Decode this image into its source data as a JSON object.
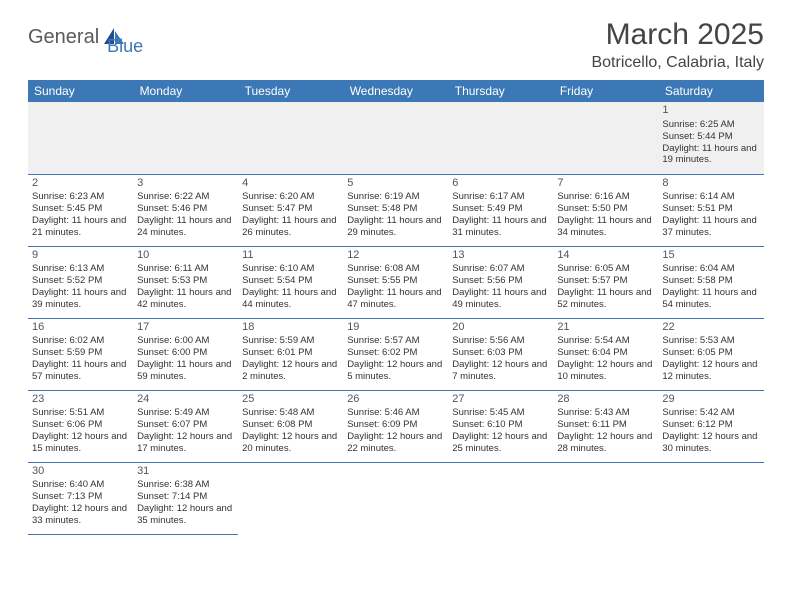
{
  "logo": {
    "text1": "General",
    "text2": "Blue"
  },
  "title": "March 2025",
  "location": "Botricello, Calabria, Italy",
  "colors": {
    "header_bg": "#3b78b5",
    "header_text": "#ffffff",
    "border": "#3b78b5",
    "empty_bg": "#f0f0f0",
    "logo_gray": "#5a5a5a",
    "logo_blue": "#3b78b5"
  },
  "day_headers": [
    "Sunday",
    "Monday",
    "Tuesday",
    "Wednesday",
    "Thursday",
    "Friday",
    "Saturday"
  ],
  "weeks": [
    [
      null,
      null,
      null,
      null,
      null,
      null,
      {
        "d": "1",
        "sr": "Sunrise: 6:25 AM",
        "ss": "Sunset: 5:44 PM",
        "dl": "Daylight: 11 hours and 19 minutes."
      }
    ],
    [
      {
        "d": "2",
        "sr": "Sunrise: 6:23 AM",
        "ss": "Sunset: 5:45 PM",
        "dl": "Daylight: 11 hours and 21 minutes."
      },
      {
        "d": "3",
        "sr": "Sunrise: 6:22 AM",
        "ss": "Sunset: 5:46 PM",
        "dl": "Daylight: 11 hours and 24 minutes."
      },
      {
        "d": "4",
        "sr": "Sunrise: 6:20 AM",
        "ss": "Sunset: 5:47 PM",
        "dl": "Daylight: 11 hours and 26 minutes."
      },
      {
        "d": "5",
        "sr": "Sunrise: 6:19 AM",
        "ss": "Sunset: 5:48 PM",
        "dl": "Daylight: 11 hours and 29 minutes."
      },
      {
        "d": "6",
        "sr": "Sunrise: 6:17 AM",
        "ss": "Sunset: 5:49 PM",
        "dl": "Daylight: 11 hours and 31 minutes."
      },
      {
        "d": "7",
        "sr": "Sunrise: 6:16 AM",
        "ss": "Sunset: 5:50 PM",
        "dl": "Daylight: 11 hours and 34 minutes."
      },
      {
        "d": "8",
        "sr": "Sunrise: 6:14 AM",
        "ss": "Sunset: 5:51 PM",
        "dl": "Daylight: 11 hours and 37 minutes."
      }
    ],
    [
      {
        "d": "9",
        "sr": "Sunrise: 6:13 AM",
        "ss": "Sunset: 5:52 PM",
        "dl": "Daylight: 11 hours and 39 minutes."
      },
      {
        "d": "10",
        "sr": "Sunrise: 6:11 AM",
        "ss": "Sunset: 5:53 PM",
        "dl": "Daylight: 11 hours and 42 minutes."
      },
      {
        "d": "11",
        "sr": "Sunrise: 6:10 AM",
        "ss": "Sunset: 5:54 PM",
        "dl": "Daylight: 11 hours and 44 minutes."
      },
      {
        "d": "12",
        "sr": "Sunrise: 6:08 AM",
        "ss": "Sunset: 5:55 PM",
        "dl": "Daylight: 11 hours and 47 minutes."
      },
      {
        "d": "13",
        "sr": "Sunrise: 6:07 AM",
        "ss": "Sunset: 5:56 PM",
        "dl": "Daylight: 11 hours and 49 minutes."
      },
      {
        "d": "14",
        "sr": "Sunrise: 6:05 AM",
        "ss": "Sunset: 5:57 PM",
        "dl": "Daylight: 11 hours and 52 minutes."
      },
      {
        "d": "15",
        "sr": "Sunrise: 6:04 AM",
        "ss": "Sunset: 5:58 PM",
        "dl": "Daylight: 11 hours and 54 minutes."
      }
    ],
    [
      {
        "d": "16",
        "sr": "Sunrise: 6:02 AM",
        "ss": "Sunset: 5:59 PM",
        "dl": "Daylight: 11 hours and 57 minutes."
      },
      {
        "d": "17",
        "sr": "Sunrise: 6:00 AM",
        "ss": "Sunset: 6:00 PM",
        "dl": "Daylight: 11 hours and 59 minutes."
      },
      {
        "d": "18",
        "sr": "Sunrise: 5:59 AM",
        "ss": "Sunset: 6:01 PM",
        "dl": "Daylight: 12 hours and 2 minutes."
      },
      {
        "d": "19",
        "sr": "Sunrise: 5:57 AM",
        "ss": "Sunset: 6:02 PM",
        "dl": "Daylight: 12 hours and 5 minutes."
      },
      {
        "d": "20",
        "sr": "Sunrise: 5:56 AM",
        "ss": "Sunset: 6:03 PM",
        "dl": "Daylight: 12 hours and 7 minutes."
      },
      {
        "d": "21",
        "sr": "Sunrise: 5:54 AM",
        "ss": "Sunset: 6:04 PM",
        "dl": "Daylight: 12 hours and 10 minutes."
      },
      {
        "d": "22",
        "sr": "Sunrise: 5:53 AM",
        "ss": "Sunset: 6:05 PM",
        "dl": "Daylight: 12 hours and 12 minutes."
      }
    ],
    [
      {
        "d": "23",
        "sr": "Sunrise: 5:51 AM",
        "ss": "Sunset: 6:06 PM",
        "dl": "Daylight: 12 hours and 15 minutes."
      },
      {
        "d": "24",
        "sr": "Sunrise: 5:49 AM",
        "ss": "Sunset: 6:07 PM",
        "dl": "Daylight: 12 hours and 17 minutes."
      },
      {
        "d": "25",
        "sr": "Sunrise: 5:48 AM",
        "ss": "Sunset: 6:08 PM",
        "dl": "Daylight: 12 hours and 20 minutes."
      },
      {
        "d": "26",
        "sr": "Sunrise: 5:46 AM",
        "ss": "Sunset: 6:09 PM",
        "dl": "Daylight: 12 hours and 22 minutes."
      },
      {
        "d": "27",
        "sr": "Sunrise: 5:45 AM",
        "ss": "Sunset: 6:10 PM",
        "dl": "Daylight: 12 hours and 25 minutes."
      },
      {
        "d": "28",
        "sr": "Sunrise: 5:43 AM",
        "ss": "Sunset: 6:11 PM",
        "dl": "Daylight: 12 hours and 28 minutes."
      },
      {
        "d": "29",
        "sr": "Sunrise: 5:42 AM",
        "ss": "Sunset: 6:12 PM",
        "dl": "Daylight: 12 hours and 30 minutes."
      }
    ],
    [
      {
        "d": "30",
        "sr": "Sunrise: 6:40 AM",
        "ss": "Sunset: 7:13 PM",
        "dl": "Daylight: 12 hours and 33 minutes."
      },
      {
        "d": "31",
        "sr": "Sunrise: 6:38 AM",
        "ss": "Sunset: 7:14 PM",
        "dl": "Daylight: 12 hours and 35 minutes."
      },
      null,
      null,
      null,
      null,
      null
    ]
  ]
}
